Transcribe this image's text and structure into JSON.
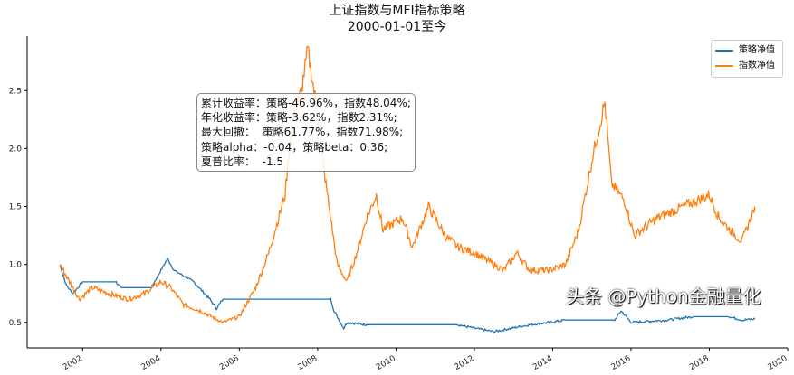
{
  "chart_data": {
    "type": "line",
    "title": "上证指数与MFI指标策略",
    "subtitle": "2000-01-01至今",
    "xlabel": "",
    "ylabel": "",
    "xlim": [
      "2000-08",
      "2020-01"
    ],
    "ylim": [
      0.28,
      2.97
    ],
    "x_ticks": [
      "2002",
      "2004",
      "2006",
      "2008",
      "2010",
      "2012",
      "2014",
      "2016",
      "2018",
      "2020"
    ],
    "y_ticks": [
      "0.5",
      "1.0",
      "1.5",
      "2.0",
      "2.5"
    ],
    "grid": false,
    "legend_position": "top-right",
    "series": [
      {
        "name": "策略净值",
        "color": "#1f77b4",
        "points": [
          [
            "2001-06",
            1.0
          ],
          [
            "2001-08",
            0.82
          ],
          [
            "2001-10",
            0.75
          ],
          [
            "2002-01",
            0.85
          ],
          [
            "2002-11",
            0.85
          ],
          [
            "2003-01",
            0.8
          ],
          [
            "2003-10",
            0.8
          ],
          [
            "2004-01",
            0.95
          ],
          [
            "2004-03",
            1.05
          ],
          [
            "2004-05",
            0.95
          ],
          [
            "2004-11",
            0.85
          ],
          [
            "2005-04",
            0.7
          ],
          [
            "2005-06",
            0.62
          ],
          [
            "2005-08",
            0.7
          ],
          [
            "2008-05",
            0.7
          ],
          [
            "2008-06",
            0.6
          ],
          [
            "2008-09",
            0.45
          ],
          [
            "2008-10",
            0.5
          ],
          [
            "2009-04",
            0.48
          ],
          [
            "2011-08",
            0.48
          ],
          [
            "2012-01",
            0.45
          ],
          [
            "2012-07",
            0.42
          ],
          [
            "2013-06",
            0.48
          ],
          [
            "2013-12",
            0.5
          ],
          [
            "2014-05",
            0.52
          ],
          [
            "2015-08",
            0.52
          ],
          [
            "2015-10",
            0.6
          ],
          [
            "2016-01",
            0.5
          ],
          [
            "2016-12",
            0.52
          ],
          [
            "2017-08",
            0.55
          ],
          [
            "2018-07",
            0.55
          ],
          [
            "2018-11",
            0.52
          ],
          [
            "2019-03",
            0.53
          ]
        ]
      },
      {
        "name": "指数净值",
        "color": "#ff7f0e",
        "points": [
          [
            "2001-06",
            1.0
          ],
          [
            "2001-09",
            0.85
          ],
          [
            "2001-12",
            0.7
          ],
          [
            "2002-04",
            0.8
          ],
          [
            "2002-09",
            0.75
          ],
          [
            "2003-03",
            0.7
          ],
          [
            "2003-08",
            0.75
          ],
          [
            "2004-01",
            0.85
          ],
          [
            "2004-04",
            0.8
          ],
          [
            "2004-08",
            0.65
          ],
          [
            "2005-01",
            0.6
          ],
          [
            "2005-08",
            0.5
          ],
          [
            "2006-01",
            0.55
          ],
          [
            "2006-06",
            0.8
          ],
          [
            "2006-10",
            1.1
          ],
          [
            "2007-03",
            1.6
          ],
          [
            "2007-05",
            2.2
          ],
          [
            "2007-08",
            2.5
          ],
          [
            "2007-10",
            2.85
          ],
          [
            "2008-01",
            2.3
          ],
          [
            "2008-03",
            1.8
          ],
          [
            "2008-07",
            1.0
          ],
          [
            "2008-10",
            0.85
          ],
          [
            "2009-01",
            1.1
          ],
          [
            "2009-04",
            1.4
          ],
          [
            "2009-07",
            1.6
          ],
          [
            "2009-09",
            1.3
          ],
          [
            "2010-03",
            1.4
          ],
          [
            "2010-06",
            1.15
          ],
          [
            "2010-11",
            1.5
          ],
          [
            "2011-04",
            1.25
          ],
          [
            "2011-08",
            1.15
          ],
          [
            "2012-01",
            1.1
          ],
          [
            "2012-07",
            1.0
          ],
          [
            "2012-10",
            0.95
          ],
          [
            "2013-02",
            1.1
          ],
          [
            "2013-06",
            0.95
          ],
          [
            "2013-12",
            0.95
          ],
          [
            "2014-05",
            1.0
          ],
          [
            "2014-09",
            1.3
          ],
          [
            "2015-01",
            1.9
          ],
          [
            "2015-05",
            2.4
          ],
          [
            "2015-07",
            1.7
          ],
          [
            "2015-11",
            1.55
          ],
          [
            "2016-02",
            1.25
          ],
          [
            "2016-09",
            1.4
          ],
          [
            "2017-05",
            1.5
          ],
          [
            "2018-01",
            1.6
          ],
          [
            "2018-04",
            1.4
          ],
          [
            "2018-09",
            1.25
          ],
          [
            "2018-11",
            1.2
          ],
          [
            "2019-01",
            1.35
          ],
          [
            "2019-03",
            1.5
          ]
        ]
      }
    ],
    "annotation": [
      "累计收益率：策略-46.96%，指数48.04%;",
      "年化收益率：策略-3.62%，指数2.31%;",
      "最大回撤：  策略61.77%，指数71.98%;",
      "策略alpha：-0.04，策略beta：0.36;",
      "夏普比率：  -1.5"
    ]
  },
  "watermark": "头条 @Python金融量化"
}
